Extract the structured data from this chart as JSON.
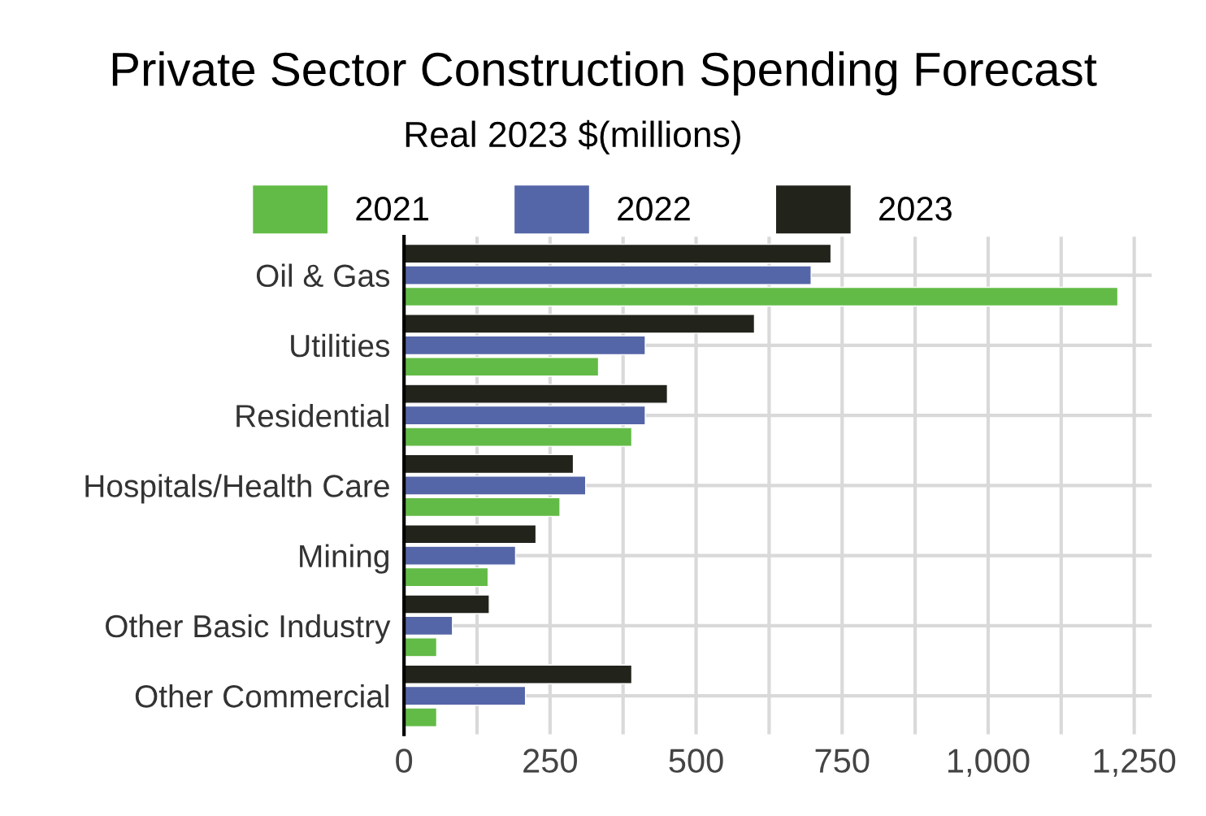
{
  "chart_data": {
    "type": "bar",
    "orientation": "horizontal",
    "title": "Private Sector Construction Spending Forecast",
    "subtitle": "Real 2023 $(millions)",
    "categories": [
      "Oil & Gas",
      "Utilities",
      "Residential",
      "Hospitals/Health Care",
      "Mining",
      "Other Basic Industry",
      "Other Commercial"
    ],
    "series": [
      {
        "name": "2021",
        "color": "#62bb46",
        "values": [
          1222,
          333,
          390,
          267,
          144,
          56,
          56
        ]
      },
      {
        "name": "2022",
        "color": "#5566a8",
        "values": [
          697,
          413,
          413,
          311,
          191,
          83,
          208
        ]
      },
      {
        "name": "2023",
        "color": "#22241c",
        "values": [
          731,
          600,
          451,
          290,
          226,
          146,
          390
        ]
      }
    ],
    "xlim": [
      0,
      1280
    ],
    "xticks": [
      0,
      {
        "value": 125,
        "label": null
      },
      250,
      {
        "value": 375,
        "label": null
      },
      500,
      {
        "value": 625,
        "label": null
      },
      750,
      {
        "value": 875,
        "label": null
      },
      {
        "value": 1000,
        "label": "1,000"
      },
      {
        "value": 1125,
        "label": null
      },
      {
        "value": 1250,
        "label": "1,250"
      }
    ],
    "grid": true,
    "legend": "top"
  }
}
